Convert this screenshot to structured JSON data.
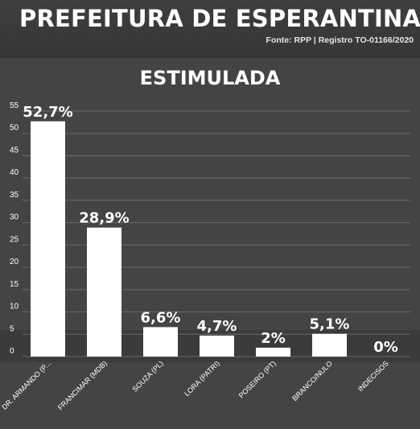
{
  "header": {
    "title": "PREFEITURA DE ESPERANTINA",
    "source": "Fonte: RPP | Registro TO-01166/2020"
  },
  "colors": {
    "background": "#3a3a3c",
    "panel": "#444446",
    "bar": "#ffffff",
    "gridline": "#6a6a6c",
    "text": "#ffffff"
  },
  "chart_data": {
    "type": "bar",
    "title": "ESTIMULADA",
    "categories": [
      "DR. ARMANDO (P...",
      "FRANCIMAR (MDB)",
      "SOUZA (PL)",
      "LORA (PATRI)",
      "POSEIRO (PT)",
      "BRANCO/NULO",
      "INDECISOS"
    ],
    "values": [
      52.7,
      28.9,
      6.6,
      4.7,
      2,
      5.1,
      0
    ],
    "data_labels": [
      "52,7%",
      "28,9%",
      "6,6%",
      "4,7%",
      "2%",
      "5,1%",
      "0%"
    ],
    "ylim": [
      0,
      55
    ],
    "yticks": [
      0,
      5,
      10,
      15,
      20,
      25,
      30,
      35,
      40,
      45,
      50,
      55
    ],
    "grid": true,
    "xlabel": "",
    "ylabel": ""
  }
}
